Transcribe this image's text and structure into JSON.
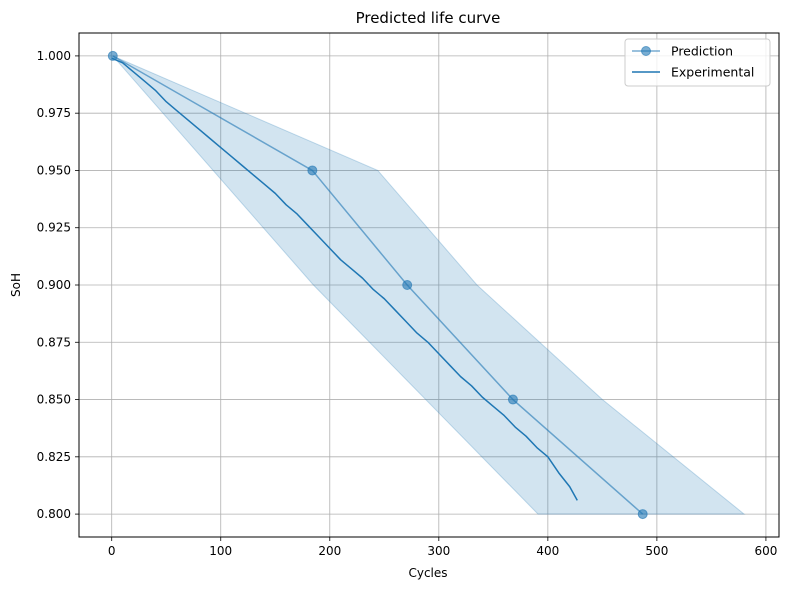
{
  "chart_data": {
    "type": "line",
    "title": "Predicted life curve",
    "xlabel": "Cycles",
    "ylabel": "SoH",
    "xlim": [
      -30,
      612
    ],
    "ylim": [
      0.79,
      1.01
    ],
    "xticks": [
      0,
      100,
      200,
      300,
      400,
      500,
      600
    ],
    "xtick_labels": [
      "0",
      "100",
      "200",
      "300",
      "400",
      "500",
      "600"
    ],
    "yticks": [
      0.8,
      0.825,
      0.85,
      0.875,
      0.9,
      0.925,
      0.95,
      0.975,
      1.0
    ],
    "ytick_labels": [
      "0.800",
      "0.825",
      "0.850",
      "0.875",
      "0.900",
      "0.925",
      "0.950",
      "0.975",
      "1.000"
    ],
    "grid": true,
    "legend_position": "top-right",
    "colors": {
      "series": "#1f77b4",
      "band": "#1f77b4",
      "grid": "#b0b0b0"
    },
    "series": [
      {
        "name": "Prediction",
        "style": "line-markers",
        "x": [
          1,
          184,
          271,
          368,
          487
        ],
        "y": [
          1.0,
          0.95,
          0.9,
          0.85,
          0.8
        ]
      },
      {
        "name": "Experimental",
        "style": "line",
        "x": [
          0,
          10,
          20,
          30,
          40,
          50,
          60,
          70,
          80,
          90,
          100,
          110,
          120,
          130,
          140,
          150,
          160,
          170,
          180,
          190,
          200,
          210,
          220,
          230,
          240,
          250,
          260,
          270,
          280,
          290,
          300,
          310,
          320,
          330,
          340,
          350,
          360,
          370,
          380,
          390,
          400,
          410,
          420,
          427
        ],
        "y": [
          0.999,
          0.997,
          0.993,
          0.989,
          0.985,
          0.98,
          0.976,
          0.972,
          0.968,
          0.964,
          0.96,
          0.956,
          0.952,
          0.948,
          0.944,
          0.94,
          0.935,
          0.931,
          0.926,
          0.921,
          0.916,
          0.911,
          0.907,
          0.903,
          0.898,
          0.894,
          0.889,
          0.884,
          0.879,
          0.875,
          0.87,
          0.865,
          0.86,
          0.856,
          0.851,
          0.847,
          0.843,
          0.838,
          0.834,
          0.829,
          0.825,
          0.818,
          0.812,
          0.806
        ]
      }
    ],
    "confidence_band": {
      "upper": {
        "x": [
          1,
          244,
          335,
          450,
          580
        ],
        "y": [
          1.0,
          0.95,
          0.9,
          0.85,
          0.8
        ]
      },
      "lower": {
        "x": [
          1,
          185,
          288,
          391
        ],
        "y": [
          1.0,
          0.9,
          0.85,
          0.8
        ]
      }
    }
  }
}
